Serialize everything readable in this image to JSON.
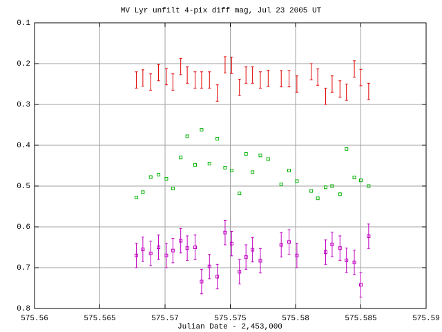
{
  "chart_data": {
    "type": "scatter",
    "title": "MV Lyr unfilt 4-pix diff mag, Jul 23 2005 UT",
    "x_label": "Julian Date - 2,453,000",
    "xlim": [
      575.56,
      575.59
    ],
    "xticks": [
      575.56,
      575.565,
      575.57,
      575.575,
      575.58,
      575.585,
      575.59
    ],
    "ylim": [
      0.8,
      0.1
    ],
    "yticks": [
      0.1,
      0.2,
      0.3,
      0.4,
      0.5,
      0.6,
      0.7,
      0.8
    ],
    "grid": true,
    "series": [
      {
        "color": "#e00000",
        "marker": "errorbar",
        "x": [
          575.5678,
          575.5683,
          575.5689,
          575.5695,
          575.5701,
          575.5706,
          575.5712,
          575.5717,
          575.5723,
          575.5728,
          575.5734,
          575.574,
          575.5746,
          575.5751,
          575.5757,
          575.5762,
          575.5767,
          575.5773,
          575.5779,
          575.5789,
          575.5795,
          575.5801,
          575.5812,
          575.5817,
          575.5823,
          575.5828,
          575.5834,
          575.5839,
          575.5845,
          575.585,
          575.5856
        ],
        "values": [
          0.24,
          0.235,
          0.245,
          0.222,
          0.232,
          0.245,
          0.207,
          0.228,
          0.24,
          0.24,
          0.24,
          0.272,
          0.203,
          0.204,
          0.258,
          0.228,
          0.228,
          0.24,
          0.236,
          0.237,
          0.237,
          0.25,
          0.22,
          0.233,
          0.28,
          0.25,
          0.262,
          0.27,
          0.213,
          0.234,
          0.268
        ],
        "errors": [
          0.02,
          0.02,
          0.02,
          0.02,
          0.02,
          0.02,
          0.02,
          0.02,
          0.02,
          0.02,
          0.02,
          0.02,
          0.02,
          0.02,
          0.02,
          0.02,
          0.02,
          0.02,
          0.02,
          0.02,
          0.02,
          0.02,
          0.02,
          0.02,
          0.02,
          0.02,
          0.02,
          0.02,
          0.02,
          0.02,
          0.02
        ]
      },
      {
        "color": "#00b000",
        "marker": "square",
        "x": [
          575.5678,
          575.5683,
          575.5689,
          575.5695,
          575.5701,
          575.5706,
          575.5712,
          575.5717,
          575.5723,
          575.5728,
          575.5734,
          575.574,
          575.5746,
          575.5751,
          575.5757,
          575.5762,
          575.5767,
          575.5773,
          575.5779,
          575.5789,
          575.5795,
          575.5801,
          575.5812,
          575.5817,
          575.5823,
          575.5828,
          575.5834,
          575.5839,
          575.5845,
          575.585,
          575.5856
        ],
        "values": [
          0.528,
          0.515,
          0.478,
          0.472,
          0.482,
          0.506,
          0.43,
          0.378,
          0.448,
          0.362,
          0.445,
          0.384,
          0.455,
          0.462,
          0.518,
          0.421,
          0.466,
          0.425,
          0.434,
          0.496,
          0.462,
          0.488,
          0.512,
          0.53,
          0.503,
          0.5,
          0.52,
          0.409,
          0.479,
          0.486,
          0.5
        ]
      },
      {
        "color": "#c000c0",
        "marker": "square-errorbar",
        "x": [
          575.5678,
          575.5683,
          575.5689,
          575.5695,
          575.5701,
          575.5706,
          575.5712,
          575.5717,
          575.5723,
          575.5728,
          575.5734,
          575.574,
          575.5746,
          575.5751,
          575.5757,
          575.5762,
          575.5767,
          575.5773,
          575.5789,
          575.5795,
          575.5801,
          575.5823,
          575.5828,
          575.5834,
          575.5839,
          575.5845,
          575.585,
          575.5856
        ],
        "values": [
          0.67,
          0.655,
          0.665,
          0.65,
          0.67,
          0.658,
          0.634,
          0.652,
          0.65,
          0.734,
          0.697,
          0.722,
          0.614,
          0.641,
          0.71,
          0.674,
          0.656,
          0.683,
          0.644,
          0.637,
          0.67,
          0.662,
          0.643,
          0.652,
          0.682,
          0.687,
          0.742,
          0.623
        ],
        "errors": [
          0.03,
          0.03,
          0.03,
          0.03,
          0.03,
          0.03,
          0.03,
          0.03,
          0.03,
          0.03,
          0.03,
          0.03,
          0.03,
          0.03,
          0.03,
          0.03,
          0.03,
          0.03,
          0.03,
          0.03,
          0.03,
          0.03,
          0.03,
          0.03,
          0.03,
          0.03,
          0.03,
          0.03
        ]
      }
    ]
  }
}
